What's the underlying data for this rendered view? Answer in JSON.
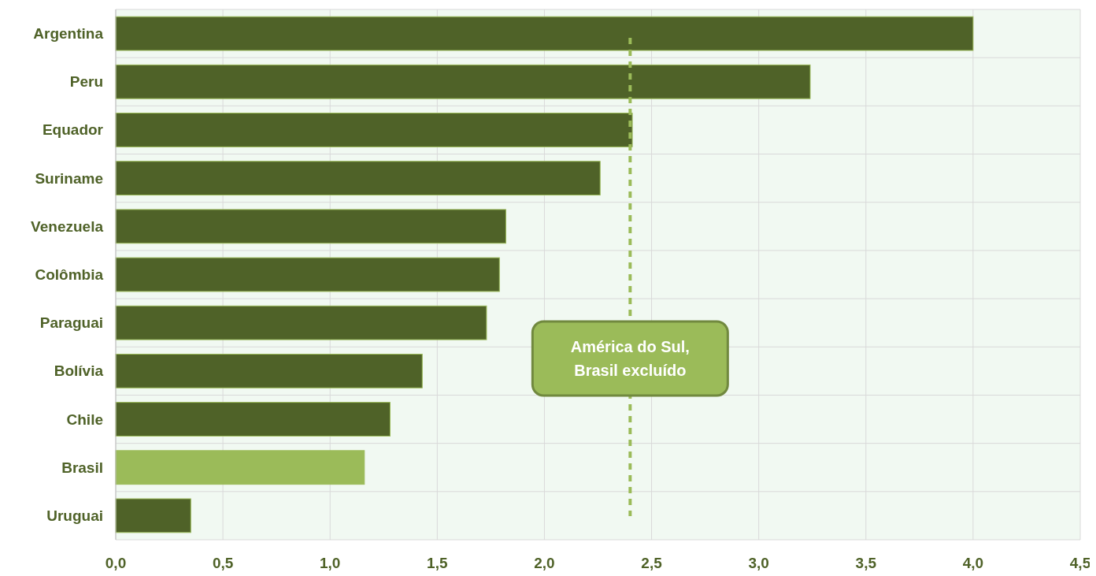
{
  "chart_data": {
    "type": "bar",
    "orientation": "horizontal",
    "categories": [
      "Argentina",
      "Peru",
      "Equador",
      "Suriname",
      "Venezuela",
      "Colômbia",
      "Paraguai",
      "Bolívia",
      "Chile",
      "Brasil",
      "Uruguai"
    ],
    "values": [
      4.0,
      3.24,
      2.41,
      2.26,
      1.82,
      1.79,
      1.73,
      1.43,
      1.28,
      1.16,
      0.35
    ],
    "colors": [
      "#4f6228",
      "#4f6228",
      "#4f6228",
      "#4f6228",
      "#4f6228",
      "#4f6228",
      "#4f6228",
      "#4f6228",
      "#4f6228",
      "#9bbb59",
      "#4f6228"
    ],
    "xlim": [
      0,
      4.5
    ],
    "xticks": [
      {
        "value": 0,
        "label": "0,0"
      },
      {
        "value": 0.5,
        "label": "0,5"
      },
      {
        "value": 1,
        "label": "1,0"
      },
      {
        "value": 1.5,
        "label": "1,5"
      },
      {
        "value": 2,
        "label": "2,0"
      },
      {
        "value": 2.5,
        "label": "2,5"
      },
      {
        "value": 3,
        "label": "3,0"
      },
      {
        "value": 3.5,
        "label": "3,5"
      },
      {
        "value": 4,
        "label": "4,0"
      },
      {
        "value": 4.5,
        "label": "4,5"
      }
    ],
    "grid": true,
    "ref_lines": [
      {
        "axis": "x",
        "value": 2.4,
        "label": "América do Sul, Brasil excluído",
        "color": "#9bbb59",
        "line_style": "dashed"
      }
    ]
  }
}
